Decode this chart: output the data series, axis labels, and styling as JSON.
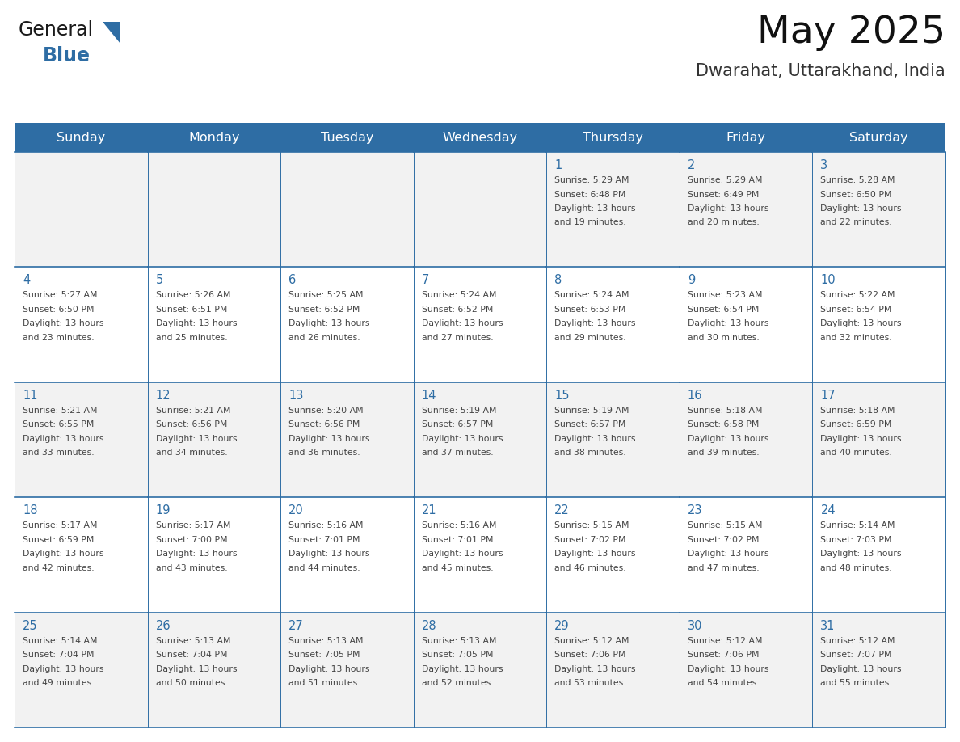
{
  "title": "May 2025",
  "subtitle": "Dwarahat, Uttarakhand, India",
  "days_of_week": [
    "Sunday",
    "Monday",
    "Tuesday",
    "Wednesday",
    "Thursday",
    "Friday",
    "Saturday"
  ],
  "header_bg": "#2E6DA4",
  "header_text": "#FFFFFF",
  "cell_bg_odd": "#F2F2F2",
  "cell_bg_even": "#FFFFFF",
  "day_num_color": "#2E6DA4",
  "text_color": "#444444",
  "line_color": "#2E6DA4",
  "logo_general_color": "#1a1a1a",
  "logo_blue_color": "#2E6DA4",
  "calendar_data": [
    [
      {
        "day": "",
        "sunrise": "",
        "sunset": "",
        "daylight": ""
      },
      {
        "day": "",
        "sunrise": "",
        "sunset": "",
        "daylight": ""
      },
      {
        "day": "",
        "sunrise": "",
        "sunset": "",
        "daylight": ""
      },
      {
        "day": "",
        "sunrise": "",
        "sunset": "",
        "daylight": ""
      },
      {
        "day": "1",
        "sunrise": "5:29 AM",
        "sunset": "6:48 PM",
        "daylight": "13 hours and 19 minutes."
      },
      {
        "day": "2",
        "sunrise": "5:29 AM",
        "sunset": "6:49 PM",
        "daylight": "13 hours and 20 minutes."
      },
      {
        "day": "3",
        "sunrise": "5:28 AM",
        "sunset": "6:50 PM",
        "daylight": "13 hours and 22 minutes."
      }
    ],
    [
      {
        "day": "4",
        "sunrise": "5:27 AM",
        "sunset": "6:50 PM",
        "daylight": "13 hours and 23 minutes."
      },
      {
        "day": "5",
        "sunrise": "5:26 AM",
        "sunset": "6:51 PM",
        "daylight": "13 hours and 25 minutes."
      },
      {
        "day": "6",
        "sunrise": "5:25 AM",
        "sunset": "6:52 PM",
        "daylight": "13 hours and 26 minutes."
      },
      {
        "day": "7",
        "sunrise": "5:24 AM",
        "sunset": "6:52 PM",
        "daylight": "13 hours and 27 minutes."
      },
      {
        "day": "8",
        "sunrise": "5:24 AM",
        "sunset": "6:53 PM",
        "daylight": "13 hours and 29 minutes."
      },
      {
        "day": "9",
        "sunrise": "5:23 AM",
        "sunset": "6:54 PM",
        "daylight": "13 hours and 30 minutes."
      },
      {
        "day": "10",
        "sunrise": "5:22 AM",
        "sunset": "6:54 PM",
        "daylight": "13 hours and 32 minutes."
      }
    ],
    [
      {
        "day": "11",
        "sunrise": "5:21 AM",
        "sunset": "6:55 PM",
        "daylight": "13 hours and 33 minutes."
      },
      {
        "day": "12",
        "sunrise": "5:21 AM",
        "sunset": "6:56 PM",
        "daylight": "13 hours and 34 minutes."
      },
      {
        "day": "13",
        "sunrise": "5:20 AM",
        "sunset": "6:56 PM",
        "daylight": "13 hours and 36 minutes."
      },
      {
        "day": "14",
        "sunrise": "5:19 AM",
        "sunset": "6:57 PM",
        "daylight": "13 hours and 37 minutes."
      },
      {
        "day": "15",
        "sunrise": "5:19 AM",
        "sunset": "6:57 PM",
        "daylight": "13 hours and 38 minutes."
      },
      {
        "day": "16",
        "sunrise": "5:18 AM",
        "sunset": "6:58 PM",
        "daylight": "13 hours and 39 minutes."
      },
      {
        "day": "17",
        "sunrise": "5:18 AM",
        "sunset": "6:59 PM",
        "daylight": "13 hours and 40 minutes."
      }
    ],
    [
      {
        "day": "18",
        "sunrise": "5:17 AM",
        "sunset": "6:59 PM",
        "daylight": "13 hours and 42 minutes."
      },
      {
        "day": "19",
        "sunrise": "5:17 AM",
        "sunset": "7:00 PM",
        "daylight": "13 hours and 43 minutes."
      },
      {
        "day": "20",
        "sunrise": "5:16 AM",
        "sunset": "7:01 PM",
        "daylight": "13 hours and 44 minutes."
      },
      {
        "day": "21",
        "sunrise": "5:16 AM",
        "sunset": "7:01 PM",
        "daylight": "13 hours and 45 minutes."
      },
      {
        "day": "22",
        "sunrise": "5:15 AM",
        "sunset": "7:02 PM",
        "daylight": "13 hours and 46 minutes."
      },
      {
        "day": "23",
        "sunrise": "5:15 AM",
        "sunset": "7:02 PM",
        "daylight": "13 hours and 47 minutes."
      },
      {
        "day": "24",
        "sunrise": "5:14 AM",
        "sunset": "7:03 PM",
        "daylight": "13 hours and 48 minutes."
      }
    ],
    [
      {
        "day": "25",
        "sunrise": "5:14 AM",
        "sunset": "7:04 PM",
        "daylight": "13 hours and 49 minutes."
      },
      {
        "day": "26",
        "sunrise": "5:13 AM",
        "sunset": "7:04 PM",
        "daylight": "13 hours and 50 minutes."
      },
      {
        "day": "27",
        "sunrise": "5:13 AM",
        "sunset": "7:05 PM",
        "daylight": "13 hours and 51 minutes."
      },
      {
        "day": "28",
        "sunrise": "5:13 AM",
        "sunset": "7:05 PM",
        "daylight": "13 hours and 52 minutes."
      },
      {
        "day": "29",
        "sunrise": "5:12 AM",
        "sunset": "7:06 PM",
        "daylight": "13 hours and 53 minutes."
      },
      {
        "day": "30",
        "sunrise": "5:12 AM",
        "sunset": "7:06 PM",
        "daylight": "13 hours and 54 minutes."
      },
      {
        "day": "31",
        "sunrise": "5:12 AM",
        "sunset": "7:07 PM",
        "daylight": "13 hours and 55 minutes."
      }
    ]
  ]
}
